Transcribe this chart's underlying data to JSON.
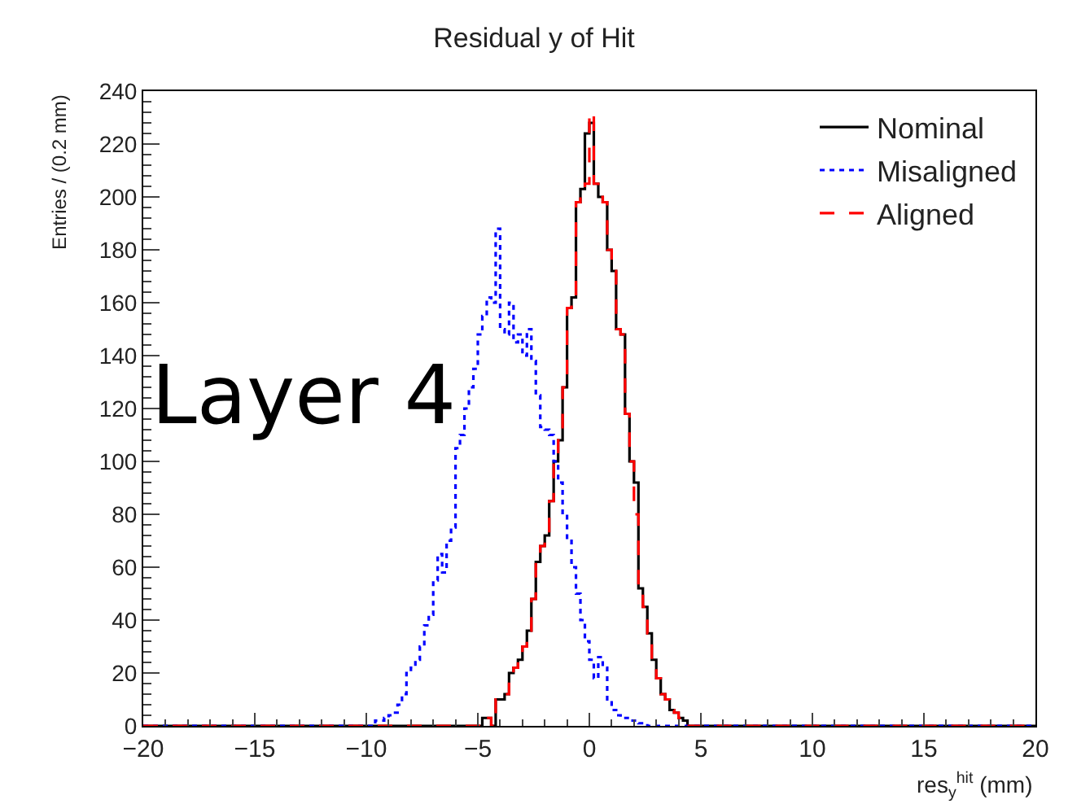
{
  "chart_data": {
    "type": "step",
    "title": "Residual y of Hit",
    "xlabel": "res$_{y}$$^{hit}$ (mm)",
    "ylabel": "Entries / (0.2 mm)",
    "annotations": [
      "Layer 4"
    ],
    "xlim": [
      -20,
      20
    ],
    "ylim": [
      0,
      240
    ],
    "xticks": [
      {
        "value": -20,
        "label": "−20"
      },
      {
        "value": -15,
        "label": "−15"
      },
      {
        "value": -10,
        "label": "−10"
      },
      {
        "value": -5,
        "label": "−5"
      },
      0,
      5,
      10,
      15,
      20
    ],
    "yticks": [
      0,
      20,
      40,
      60,
      80,
      100,
      120,
      140,
      160,
      180,
      200,
      220,
      240
    ],
    "legend": "top right",
    "series": [
      {
        "name": "Nominal",
        "color": "#000000",
        "line_style": "solid",
        "x": [
          -20,
          -4.8,
          -4.4,
          -4.2,
          -4.0,
          -3.8,
          -3.6,
          -3.4,
          -3.2,
          -3.0,
          -2.8,
          -2.6,
          -2.4,
          -2.2,
          -2.0,
          -1.8,
          -1.6,
          -1.4,
          -1.2,
          -1.0,
          -0.8,
          -0.6,
          -0.4,
          -0.2,
          0,
          0.2,
          0.4,
          0.6,
          0.8,
          1.0,
          1.2,
          1.4,
          1.6,
          1.8,
          2.0,
          2.2,
          2.4,
          2.6,
          2.8,
          3.0,
          3.2,
          3.4,
          3.6,
          3.8,
          4.0,
          4.2,
          4.4,
          20
        ],
        "values": [
          0,
          3,
          0,
          10,
          10,
          12,
          20,
          22,
          25,
          30,
          36,
          48,
          62,
          68,
          72,
          85,
          100,
          108,
          128,
          158,
          162,
          198,
          203,
          224,
          228,
          205,
          200,
          198,
          180,
          172,
          150,
          148,
          118,
          100,
          92,
          52,
          45,
          35,
          25,
          18,
          12,
          10,
          6,
          5,
          3,
          2,
          0,
          0
        ]
      },
      {
        "name": "Misaligned",
        "color": "#0000ff",
        "line_style": "dotted",
        "x": [
          -20,
          -9.6,
          -9.4,
          -9.2,
          -9.0,
          -8.8,
          -8.6,
          -8.4,
          -8.2,
          -8.0,
          -7.8,
          -7.6,
          -7.4,
          -7.2,
          -7.0,
          -6.8,
          -6.6,
          -6.4,
          -6.2,
          -6.0,
          -5.8,
          -5.6,
          -5.4,
          -5.2,
          -5.0,
          -4.8,
          -4.6,
          -4.4,
          -4.2,
          -4.0,
          -3.8,
          -3.6,
          -3.4,
          -3.2,
          -3.0,
          -2.8,
          -2.6,
          -2.4,
          -2.2,
          -2.0,
          -1.8,
          -1.6,
          -1.4,
          -1.2,
          -1.0,
          -0.8,
          -0.6,
          -0.4,
          -0.2,
          0,
          0.2,
          0.4,
          0.6,
          0.8,
          1.0,
          1.2,
          1.4,
          1.6,
          1.8,
          2.0,
          2.2,
          2.4,
          2.6,
          20
        ],
        "values": [
          0,
          2,
          2,
          3,
          4,
          5,
          8,
          12,
          20,
          22,
          25,
          30,
          38,
          42,
          55,
          65,
          58,
          70,
          75,
          105,
          110,
          120,
          128,
          135,
          148,
          155,
          162,
          160,
          188,
          150,
          148,
          160,
          145,
          148,
          140,
          150,
          138,
          125,
          113,
          112,
          110,
          100,
          92,
          80,
          70,
          60,
          50,
          40,
          32,
          25,
          18,
          26,
          22,
          10,
          6,
          4,
          3,
          3,
          2,
          2,
          1,
          1,
          0,
          0
        ]
      },
      {
        "name": "Aligned",
        "color": "#ff0000",
        "line_style": "dashed",
        "x": [
          -20,
          -4.8,
          -4.4,
          -4.2,
          -4.0,
          -3.8,
          -3.6,
          -3.4,
          -3.2,
          -3.0,
          -2.8,
          -2.6,
          -2.4,
          -2.2,
          -2.0,
          -1.8,
          -1.6,
          -1.4,
          -1.2,
          -1.0,
          -0.8,
          -0.6,
          -0.4,
          -0.2,
          0,
          0.2,
          0.4,
          0.6,
          0.8,
          1.0,
          1.2,
          1.4,
          1.6,
          1.8,
          2.0,
          2.2,
          2.4,
          2.6,
          2.8,
          3.0,
          3.2,
          3.4,
          3.6,
          3.8,
          4.0,
          4.2,
          4.4,
          20
        ],
        "values": [
          0,
          3,
          0,
          10,
          10,
          12,
          20,
          22,
          25,
          30,
          36,
          48,
          62,
          68,
          72,
          85,
          100,
          108,
          128,
          158,
          162,
          198,
          203,
          205,
          232,
          205,
          200,
          198,
          180,
          172,
          150,
          148,
          118,
          100,
          80,
          52,
          45,
          35,
          25,
          18,
          12,
          10,
          6,
          5,
          3,
          2,
          0,
          0
        ]
      }
    ]
  }
}
